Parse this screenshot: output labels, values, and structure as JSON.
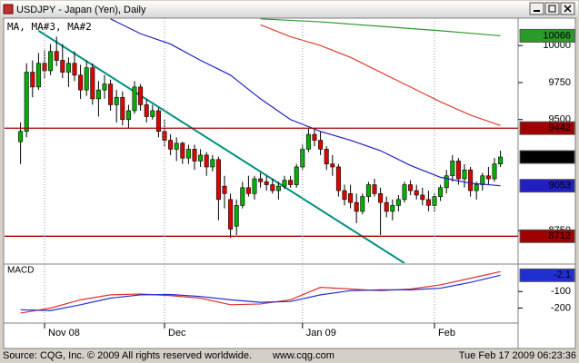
{
  "window_title": "USDJPY - Japan (Yen), Daily",
  "footer": {
    "source": "Source: CQG, Inc. © 2009 All rights reserved worldwide.",
    "url": "www.cqg.com",
    "timestamp": "Tue Feb 17 2009 06:23:36"
  },
  "chart_data": [
    {
      "type": "candlestick",
      "title": "MA, MA#3, MA#2",
      "categories": [
        null,
        null,
        null,
        null,
        "Nov 08",
        null,
        null,
        null,
        null,
        null,
        null,
        null,
        null,
        null,
        null,
        null,
        null,
        null,
        null,
        null,
        null,
        null,
        null,
        null,
        "Dec",
        null,
        null,
        null,
        null,
        null,
        null,
        null,
        null,
        null,
        null,
        null,
        null,
        null,
        null,
        null,
        null,
        null,
        null,
        null,
        null,
        null,
        null,
        "Jan 09",
        null,
        null,
        null,
        null,
        null,
        null,
        null,
        null,
        null,
        null,
        null,
        null,
        null,
        null,
        null,
        null,
        null,
        null,
        null,
        null,
        null,
        "Feb",
        null,
        null,
        null,
        null,
        null,
        null,
        null,
        null,
        null,
        null,
        null
      ],
      "open": [
        9350,
        9420,
        9820,
        9720,
        9880,
        9830,
        9960,
        9900,
        9820,
        9880,
        9800,
        9700,
        9850,
        9640,
        9700,
        9740,
        9600,
        9650,
        9500,
        9560,
        9720,
        9600,
        9520,
        9560,
        9420,
        9360,
        9300,
        9340,
        9240,
        9300,
        9220,
        9260,
        9180,
        9230,
        9050,
        8960,
        8780,
        8920,
        9040,
        9000,
        9100,
        9080,
        9060,
        9020,
        9050,
        9090,
        9060,
        9180,
        9300,
        9400,
        9360,
        9300,
        9200,
        9180,
        9020,
        9000,
        8940,
        8880,
        8980,
        9060,
        9000,
        8940,
        8880,
        8920,
        8960,
        9060,
        9020,
        8990,
        8960,
        8920,
        8980,
        9040,
        9120,
        9220,
        9100,
        9160,
        9020,
        9060,
        9120,
        9100,
        9200
      ],
      "high": [
        9480,
        9880,
        9900,
        9950,
        9970,
        10010,
        10060,
        10010,
        9920,
        9960,
        9870,
        9900,
        9880,
        9760,
        9800,
        9770,
        9700,
        9690,
        9600,
        9760,
        9740,
        9640,
        9600,
        9580,
        9500,
        9400,
        9380,
        9350,
        9330,
        9330,
        9300,
        9280,
        9260,
        9250,
        9120,
        9000,
        8960,
        9080,
        9120,
        9120,
        9140,
        9120,
        9100,
        9080,
        9120,
        9120,
        9200,
        9330,
        9442,
        9440,
        9420,
        9320,
        9260,
        9200,
        9060,
        9060,
        9000,
        9000,
        9080,
        9100,
        9040,
        8980,
        8960,
        8990,
        9080,
        9090,
        9060,
        9040,
        9020,
        9000,
        9060,
        9160,
        9260,
        9240,
        9200,
        9180,
        9080,
        9140,
        9180,
        9240,
        9290
      ],
      "low": [
        9200,
        9380,
        9650,
        9700,
        9780,
        9800,
        9860,
        9780,
        9720,
        9760,
        9640,
        9660,
        9600,
        9520,
        9640,
        9560,
        9480,
        9460,
        9440,
        9540,
        9560,
        9480,
        9500,
        9380,
        9320,
        9260,
        9220,
        9200,
        9200,
        9160,
        9180,
        9120,
        9150,
        8820,
        8900,
        8700,
        8720,
        8900,
        8980,
        8960,
        9040,
        9020,
        9000,
        8960,
        9030,
        9040,
        9040,
        9160,
        9280,
        9320,
        9260,
        9160,
        9120,
        8980,
        8920,
        8900,
        8800,
        8860,
        8940,
        8980,
        8720,
        8840,
        8820,
        8880,
        8940,
        8990,
        8960,
        8920,
        8880,
        8880,
        8950,
        9000,
        9080,
        9060,
        9040,
        8980,
        8960,
        9020,
        9060,
        9080,
        9180
      ],
      "close": [
        9420,
        9820,
        9720,
        9880,
        9830,
        9960,
        9900,
        9820,
        9880,
        9800,
        9700,
        9850,
        9640,
        9700,
        9740,
        9600,
        9650,
        9500,
        9560,
        9720,
        9600,
        9520,
        9560,
        9420,
        9360,
        9300,
        9340,
        9240,
        9300,
        9220,
        9260,
        9180,
        9230,
        8960,
        9000,
        8760,
        8920,
        9040,
        9000,
        9100,
        9080,
        9060,
        9020,
        9050,
        9090,
        9060,
        9180,
        9300,
        9400,
        9360,
        9300,
        9200,
        9180,
        9020,
        8960,
        8940,
        8880,
        8980,
        9060,
        9000,
        8940,
        8880,
        8920,
        8960,
        9060,
        9020,
        8990,
        8960,
        8920,
        8980,
        9040,
        9120,
        9220,
        9100,
        9160,
        9020,
        9060,
        9120,
        9100,
        9200,
        9247
      ],
      "up_color": "#00b000",
      "down_color": "#e00000",
      "ylim": [
        8530,
        10185
      ],
      "yticks": [
        8750,
        9500,
        9750,
        10000
      ],
      "series": [
        {
          "color": "#2a9a2a",
          "show_last": true,
          "box_text": "#000000",
          "x": [
            40,
            50,
            60,
            70,
            80
          ],
          "values": [
            10180,
            10160,
            10130,
            10100,
            10066
          ]
        },
        {
          "color": "#e04030",
          "show_last": false,
          "box_text": "#ffffff",
          "x": [
            40,
            45,
            50,
            55,
            60,
            65,
            70,
            75,
            80
          ],
          "values": [
            10140,
            10060,
            10000,
            9920,
            9820,
            9720,
            9620,
            9530,
            9460
          ]
        },
        {
          "color": "#2020c0",
          "show_last": true,
          "box_text": "#ffffff",
          "x": [
            15,
            20,
            25,
            30,
            35,
            40,
            45,
            50,
            55,
            60,
            65,
            70,
            75,
            80
          ],
          "values": [
            10180,
            10080,
            10010,
            9900,
            9800,
            9640,
            9500,
            9420,
            9360,
            9290,
            9190,
            9110,
            9070,
            9053
          ]
        }
      ],
      "hlines": {
        "color": "#a00000",
        "values": [
          9442,
          8712
        ]
      },
      "trendline": {
        "color": "#009080",
        "x": [
          3,
          64
        ],
        "values": [
          10100,
          8530
        ]
      },
      "last_color": "#000000"
    },
    {
      "type": "line",
      "title": "MACD",
      "ylim": [
        -285,
        60
      ],
      "yticks": [
        -200,
        -100
      ],
      "series": [
        {
          "color": "#e03030",
          "show_last": false,
          "x": [
            0,
            5,
            10,
            15,
            20,
            25,
            30,
            35,
            40,
            45,
            50,
            55,
            60,
            65,
            70,
            75,
            80
          ],
          "values": [
            -230,
            -200,
            -150,
            -120,
            -115,
            -125,
            -140,
            -180,
            -175,
            -150,
            -75,
            -85,
            -95,
            -85,
            -60,
            -20,
            20
          ]
        },
        {
          "color": "#2030d0",
          "show_last": true,
          "x": [
            0,
            5,
            10,
            15,
            20,
            25,
            30,
            35,
            40,
            45,
            50,
            55,
            60,
            65,
            70,
            75,
            80
          ],
          "values": [
            -210,
            -215,
            -180,
            -140,
            -120,
            -118,
            -130,
            -150,
            -165,
            -160,
            -120,
            -95,
            -90,
            -90,
            -80,
            -45,
            -2.1
          ]
        }
      ]
    }
  ]
}
